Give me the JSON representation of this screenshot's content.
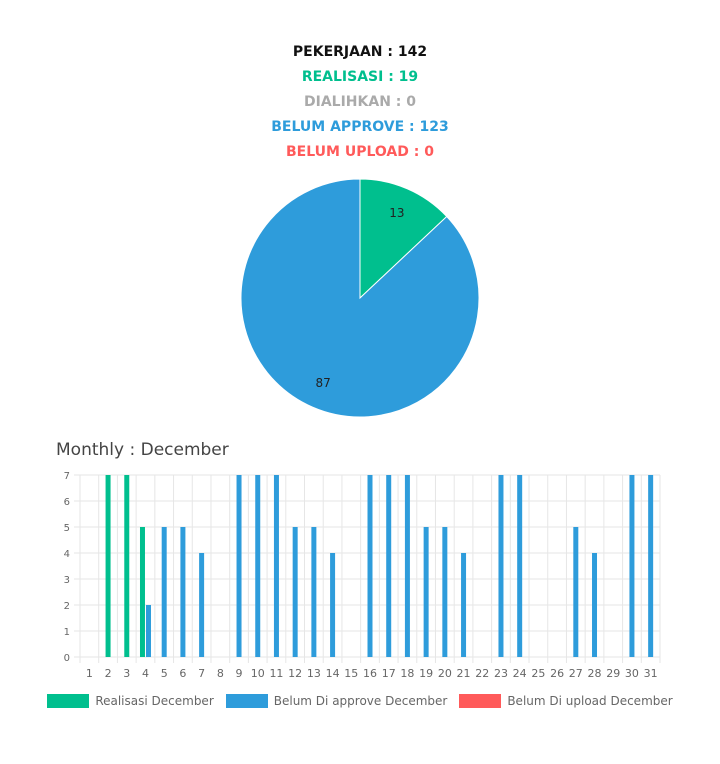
{
  "summary": {
    "pekerjaan": "PEKERJAAN : 142",
    "realisasi": "REALISASI : 19",
    "dialihkan": "DIALIHKAN : 0",
    "belum_approve": "BELUM APPROVE : 123",
    "belum_upload": "BELUM UPLOAD : 0"
  },
  "colors": {
    "black": "#111111",
    "green": "#00BF8E",
    "gray": "#AAAAAA",
    "blue": "#2E9CDB",
    "red": "#FF5A5A",
    "grid": "#e6e6e6",
    "tick": "#666666"
  },
  "monthly_title": "Monthly : December",
  "chart_data": [
    {
      "type": "pie",
      "slices": [
        {
          "label": "13",
          "value": 13,
          "color": "#00BF8E"
        },
        {
          "label": "87",
          "value": 87,
          "color": "#2E9CDB"
        }
      ]
    },
    {
      "type": "bar",
      "categories": [
        "1",
        "2",
        "3",
        "4",
        "5",
        "6",
        "7",
        "8",
        "9",
        "10",
        "11",
        "12",
        "13",
        "14",
        "15",
        "16",
        "17",
        "18",
        "19",
        "20",
        "21",
        "22",
        "23",
        "24",
        "25",
        "26",
        "27",
        "28",
        "29",
        "30",
        "31"
      ],
      "series": [
        {
          "name": "Realisasi December",
          "color": "#00BF8E",
          "values": [
            0,
            7,
            7,
            5,
            0,
            0,
            0,
            0,
            0,
            0,
            0,
            0,
            0,
            0,
            0,
            0,
            0,
            0,
            0,
            0,
            0,
            0,
            0,
            0,
            0,
            0,
            0,
            0,
            0,
            0,
            0
          ]
        },
        {
          "name": "Belum Di approve December",
          "color": "#2E9CDB",
          "values": [
            0,
            0,
            0,
            2,
            5,
            5,
            4,
            0,
            7,
            7,
            7,
            5,
            5,
            4,
            0,
            7,
            7,
            7,
            5,
            5,
            4,
            0,
            7,
            7,
            0,
            0,
            5,
            4,
            0,
            7,
            7
          ]
        },
        {
          "name": "Belum Di upload December",
          "color": "#FF5A5A",
          "values": [
            0,
            0,
            0,
            0,
            0,
            0,
            0,
            0,
            0,
            0,
            0,
            0,
            0,
            0,
            0,
            0,
            0,
            0,
            0,
            0,
            0,
            0,
            0,
            0,
            0,
            0,
            0,
            0,
            0,
            0,
            0
          ]
        }
      ],
      "ylim": [
        0,
        7
      ],
      "yticks": [
        0,
        1,
        2,
        3,
        4,
        5,
        6,
        7
      ],
      "grid": true,
      "legend": "bottom"
    }
  ]
}
